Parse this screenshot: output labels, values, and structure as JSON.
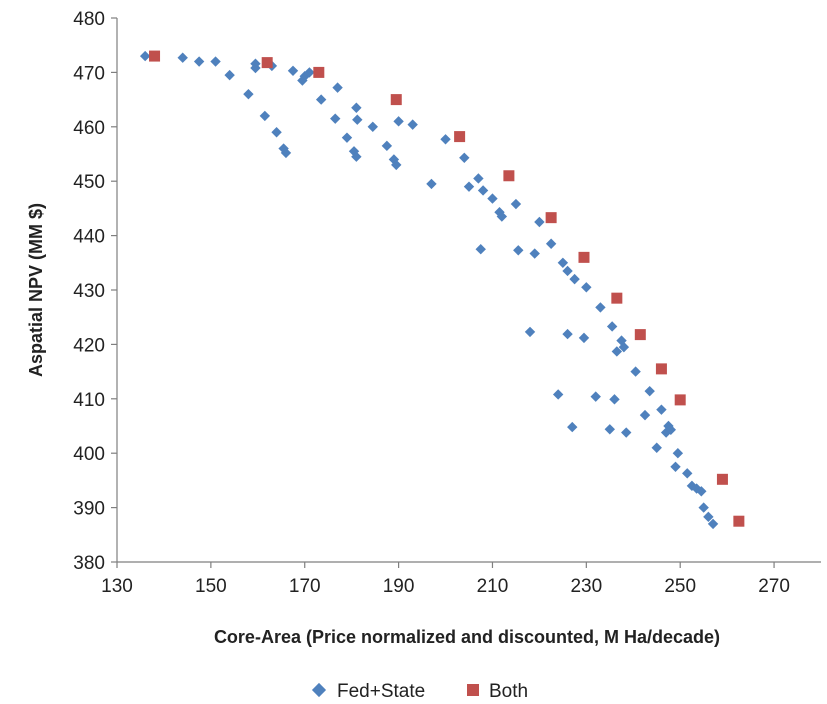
{
  "chart_data": {
    "type": "scatter",
    "xlabel": "Core-Area  (Price normalized and discounted, M Ha/decade)",
    "ylabel": "Aspatial  NPV (MM $)",
    "xlim": [
      130,
      280
    ],
    "ylim": [
      380,
      480
    ],
    "xticks": [
      130,
      150,
      170,
      190,
      210,
      230,
      250,
      270
    ],
    "yticks": [
      380,
      390,
      400,
      410,
      420,
      430,
      440,
      450,
      460,
      470,
      480
    ],
    "grid": false,
    "legend": "bottom",
    "series": [
      {
        "name": "Fed+State",
        "marker": "diamond",
        "color": "#4F81BD",
        "points": [
          [
            136,
            473
          ],
          [
            144,
            472.7
          ],
          [
            147.5,
            472
          ],
          [
            151,
            472
          ],
          [
            154,
            469.5
          ],
          [
            158,
            466
          ],
          [
            159.5,
            471.6
          ],
          [
            159.5,
            470.8
          ],
          [
            161.5,
            462
          ],
          [
            163,
            471.2
          ],
          [
            164,
            459
          ],
          [
            165.5,
            456
          ],
          [
            166,
            455.2
          ],
          [
            167.5,
            470.3
          ],
          [
            169.5,
            468.5
          ],
          [
            170,
            469.3
          ],
          [
            171,
            470
          ],
          [
            173.5,
            465
          ],
          [
            176.5,
            461.5
          ],
          [
            177,
            467.2
          ],
          [
            179,
            458
          ],
          [
            180.5,
            455.5
          ],
          [
            181,
            454.5
          ],
          [
            181,
            463.5
          ],
          [
            181.2,
            461.3
          ],
          [
            184.5,
            460
          ],
          [
            187.5,
            456.5
          ],
          [
            189,
            454
          ],
          [
            189.5,
            453
          ],
          [
            190,
            461
          ],
          [
            193,
            460.4
          ],
          [
            197,
            449.5
          ],
          [
            200,
            457.7
          ],
          [
            204,
            454.3
          ],
          [
            205,
            449
          ],
          [
            207,
            450.5
          ],
          [
            207.5,
            437.5
          ],
          [
            208,
            448.3
          ],
          [
            210,
            446.8
          ],
          [
            211.5,
            444.3
          ],
          [
            212,
            443.5
          ],
          [
            215,
            445.8
          ],
          [
            215.5,
            437.3
          ],
          [
            218,
            422.3
          ],
          [
            219,
            436.7
          ],
          [
            220,
            442.5
          ],
          [
            222.5,
            438.5
          ],
          [
            224,
            410.8
          ],
          [
            225,
            435
          ],
          [
            226,
            421.9
          ],
          [
            226,
            433.5
          ],
          [
            227,
            404.8
          ],
          [
            227.5,
            432
          ],
          [
            229.5,
            421.2
          ],
          [
            230,
            430.5
          ],
          [
            232,
            410.4
          ],
          [
            233,
            426.8
          ],
          [
            235,
            404.4
          ],
          [
            235.5,
            423.3
          ],
          [
            236,
            409.9
          ],
          [
            236.5,
            418.7
          ],
          [
            237.5,
            420.7
          ],
          [
            238,
            419.5
          ],
          [
            238.5,
            403.8
          ],
          [
            240.5,
            415
          ],
          [
            242.5,
            407
          ],
          [
            243.5,
            411.4
          ],
          [
            245,
            401
          ],
          [
            246,
            408
          ],
          [
            247,
            403.8
          ],
          [
            247.5,
            405
          ],
          [
            248,
            404.3
          ],
          [
            249,
            397.5
          ],
          [
            249.5,
            400
          ],
          [
            251.5,
            396.3
          ],
          [
            252.5,
            394
          ],
          [
            253.5,
            393.5
          ],
          [
            254.5,
            393
          ],
          [
            255,
            390
          ],
          [
            256,
            388.3
          ],
          [
            257,
            387
          ]
        ]
      },
      {
        "name": "Both",
        "marker": "square",
        "color": "#C0504D",
        "points": [
          [
            138,
            473
          ],
          [
            162,
            471.8
          ],
          [
            173,
            470
          ],
          [
            189.5,
            465
          ],
          [
            203,
            458.2
          ],
          [
            213.5,
            451
          ],
          [
            222.5,
            443.3
          ],
          [
            229.5,
            436
          ],
          [
            236.5,
            428.5
          ],
          [
            241.5,
            421.8
          ],
          [
            246,
            415.5
          ],
          [
            250,
            409.8
          ],
          [
            259,
            395.2
          ],
          [
            262.5,
            387.5
          ]
        ]
      }
    ]
  }
}
